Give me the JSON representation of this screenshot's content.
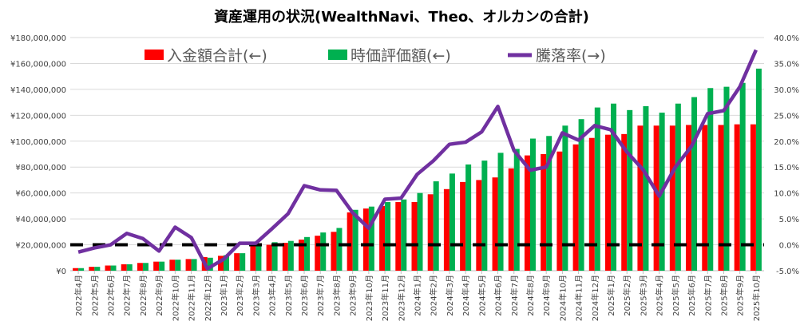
{
  "chart_data": {
    "type": "bar",
    "title": "資産運用の状況(WealthNavi、Theo、オルカンの合計)",
    "categories": [
      "2022年4月",
      "2022年5月",
      "2022年6月",
      "2022年7月",
      "2022年8月",
      "2022年9月",
      "2022年10月",
      "2022年11月",
      "2022年12月",
      "2023年1月",
      "2023年2月",
      "2023年3月",
      "2023年4月",
      "2023年5月",
      "2023年6月",
      "2023年7月",
      "2023年8月",
      "2023年9月",
      "2023年10月",
      "2023年11月",
      "2023年12月",
      "2024年1月",
      "2024年2月",
      "2024年3月",
      "2024年4月",
      "2024年5月",
      "2024年6月",
      "2024年7月",
      "2024年8月",
      "2024年9月",
      "2024年10月",
      "2024年11月",
      "2024年12月",
      "2025年1月",
      "2025年2月",
      "2025年3月",
      "2025年4月",
      "2025年5月",
      "2025年6月",
      "2025年7月",
      "2025年8月",
      "2025年9月",
      "2025年10月"
    ],
    "series": [
      {
        "name": "入金額合計(←)",
        "type": "bar",
        "axis": "left",
        "color": "#ff0000",
        "values": [
          2000000,
          3000000,
          4000000,
          5000000,
          6000000,
          7000000,
          8500000,
          9000000,
          10500000,
          11500000,
          13500000,
          19000000,
          20000000,
          21500000,
          24000000,
          27000000,
          30000000,
          45000000,
          48000000,
          50000000,
          53000000,
          53000000,
          59000000,
          63000000,
          68500000,
          70000000,
          72000000,
          79000000,
          89000000,
          90000000,
          92000000,
          97500000,
          102500000,
          105000000,
          105500000,
          112000000,
          112000000,
          112000000,
          112500000,
          112500000,
          112500000,
          113000000,
          113000000
        ]
      },
      {
        "name": "時価評価額(←)",
        "type": "bar",
        "axis": "left",
        "color": "#00b050",
        "values": [
          2000000,
          3000000,
          4000000,
          5000000,
          6000000,
          7000000,
          8500000,
          9000000,
          10000000,
          12000000,
          13500000,
          19500000,
          22000000,
          23000000,
          26000000,
          29500000,
          33000000,
          47000000,
          49500000,
          53000000,
          55000000,
          60000000,
          69000000,
          75000000,
          82000000,
          85000000,
          91000000,
          94000000,
          102000000,
          104000000,
          112000000,
          117000000,
          126000000,
          129000000,
          124000000,
          127000000,
          122000000,
          129000000,
          134000000,
          141000000,
          142000000,
          145000000,
          156000000
        ]
      },
      {
        "name": "騰落率(→)",
        "type": "line",
        "axis": "right",
        "color": "#7030a0",
        "values": [
          -1.4,
          -0.6,
          0.0,
          2.2,
          1.2,
          -1.2,
          3.4,
          1.4,
          -4.6,
          -2.8,
          0.3,
          0.3,
          3.1,
          6.0,
          11.4,
          10.6,
          10.5,
          6.2,
          3.2,
          8.8,
          9.0,
          13.6,
          16.2,
          19.4,
          19.8,
          21.8,
          26.7,
          18.2,
          14.4,
          15.0,
          21.6,
          20.2,
          23.0,
          22.2,
          17.9,
          14.5,
          9.4,
          15.0,
          19.0,
          25.3,
          25.9,
          30.5,
          37.6
        ]
      }
    ],
    "left_axis": {
      "range": [
        0,
        180000000
      ],
      "ticks": [
        "¥0",
        "¥20,000,000",
        "¥40,000,000",
        "¥60,000,000",
        "¥80,000,000",
        "¥100,000,000",
        "¥120,000,000",
        "¥140,000,000",
        "¥160,000,000",
        "¥180,000,000"
      ]
    },
    "right_axis": {
      "range": [
        -5,
        40
      ],
      "ticks": [
        "-5.0%",
        "0.0%",
        "5.0%",
        "10.0%",
        "15.0%",
        "20.0%",
        "25.0%",
        "30.0%",
        "35.0%",
        "40.0%"
      ]
    },
    "reference_line": {
      "axis": "right",
      "value": 0,
      "style": "dashed",
      "color": "#000000"
    },
    "grid": true,
    "legend": "top"
  }
}
